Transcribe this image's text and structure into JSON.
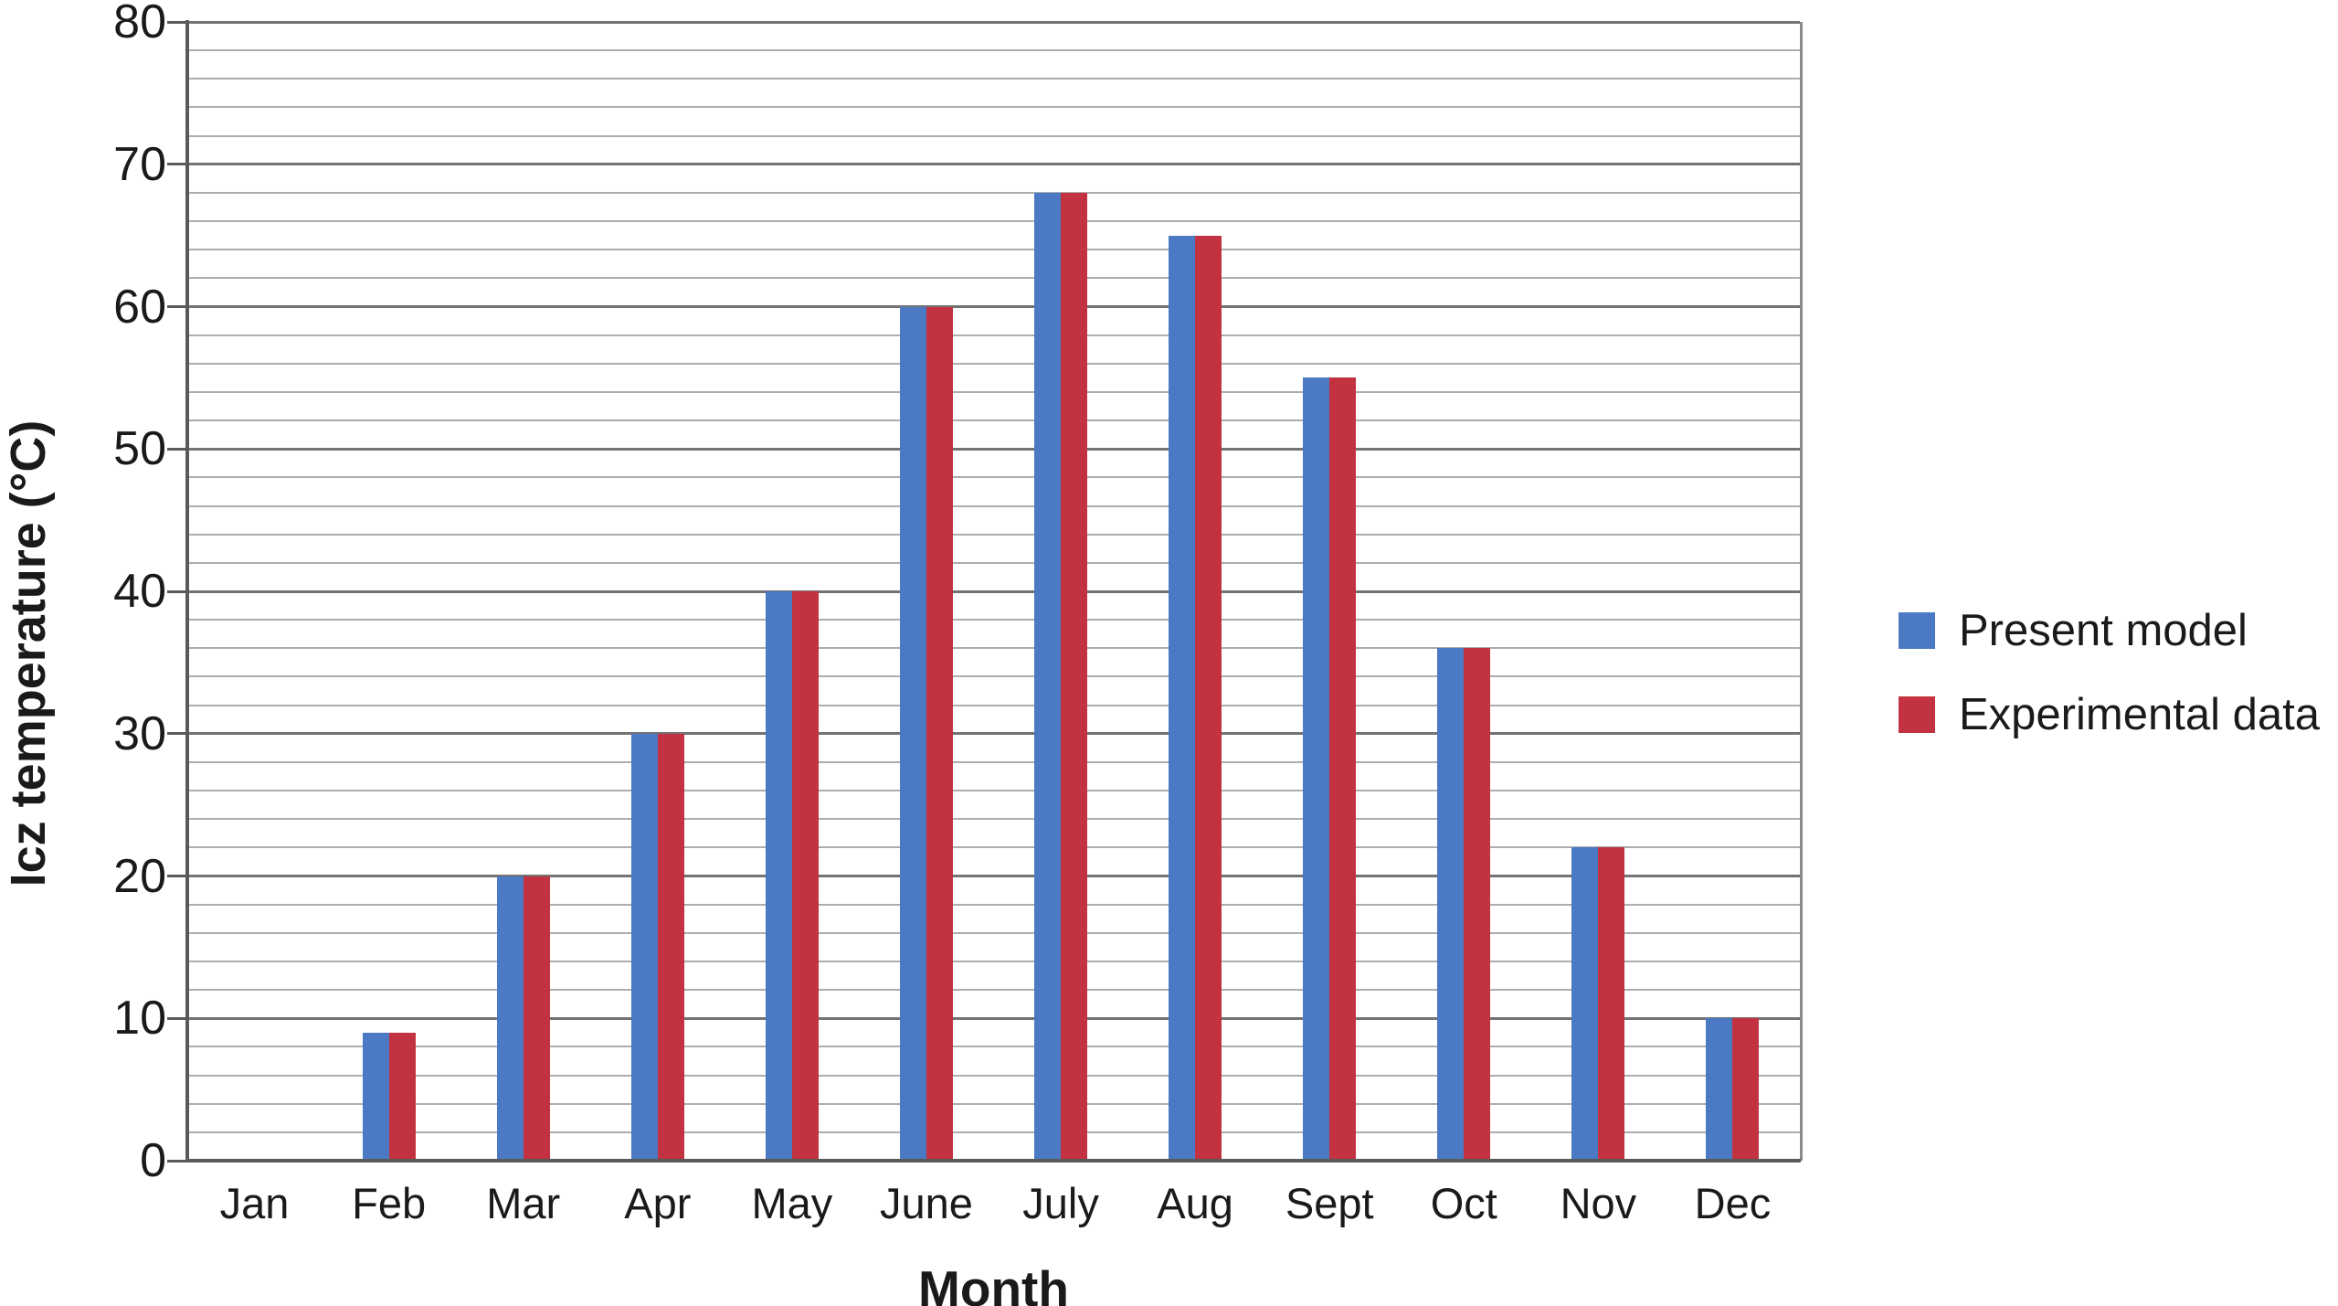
{
  "chart_data": {
    "type": "bar",
    "title": "",
    "xlabel": "Month",
    "ylabel": "Icz temperature (°C)",
    "categories": [
      "Jan",
      "Feb",
      "Mar",
      "Apr",
      "May",
      "June",
      "July",
      "Aug",
      "Sept",
      "Oct",
      "Nov",
      "Dec"
    ],
    "series": [
      {
        "name": "Present model",
        "color": "#4b79c3",
        "values": [
          0,
          9,
          20,
          30,
          40,
          60,
          68,
          65,
          55,
          36,
          22,
          10
        ]
      },
      {
        "name": "Experimental data",
        "color": "#c23240",
        "values": [
          0,
          9,
          20,
          30,
          40,
          60,
          68,
          65,
          55,
          36,
          22,
          10
        ]
      }
    ],
    "ylim": [
      0,
      80
    ],
    "y_major_step": 10,
    "y_minor_step": 2,
    "y_tick_labels": [
      "0",
      "10",
      "20",
      "30",
      "40",
      "50",
      "60",
      "70",
      "80"
    ],
    "grid": "horizontal",
    "legend_position": "right",
    "colors": {
      "grid_minor": "#adadad",
      "grid_major": "#737373",
      "axis": "#5a5a5a",
      "text": "#1a1a1a"
    }
  }
}
